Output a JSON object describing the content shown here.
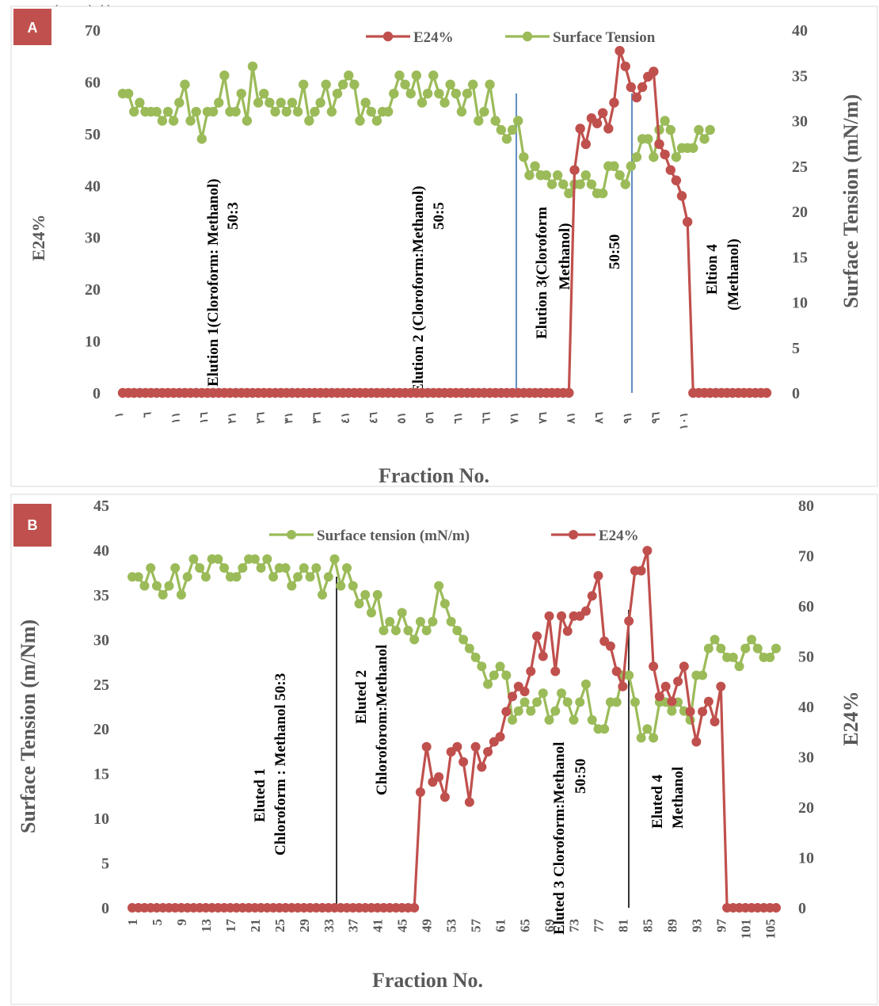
{
  "caption": "p (g y p) ( )",
  "chart_data": [
    {
      "panel": "A",
      "type": "line",
      "xlabel": "Fraction No.",
      "ylabel_left": "E24%",
      "ylabel_right": "Surface Tension (mN/m)",
      "ylim_left": [
        0,
        70
      ],
      "ylim_right": [
        0,
        40
      ],
      "yticks_left": [
        "0",
        "10",
        "20",
        "30",
        "40",
        "50",
        "60",
        "70"
      ],
      "yticks_right": [
        "0",
        "5",
        "10",
        "15",
        "20",
        "25",
        "30",
        "35",
        "40"
      ],
      "xticks": [
        "١",
        "٦",
        "١١",
        "١٦",
        "٢١",
        "٢٦",
        "٣١",
        "٣٦",
        "٤١",
        "٤٦",
        "٥١",
        "٥٦",
        "٦١",
        "٦٦",
        "٧١",
        "٧٦",
        "٨١",
        "٨٦",
        "٩١",
        "٩٦",
        "١٠١"
      ],
      "legend_placement": "top",
      "colors": {
        "e24": "#c0504d",
        "st": "#9bbb59",
        "divider": "#4f81bd"
      },
      "series": [
        {
          "name": "E24%",
          "axis": "left",
          "values": [
            0,
            0,
            0,
            0,
            0,
            0,
            0,
            0,
            0,
            0,
            0,
            0,
            0,
            0,
            0,
            0,
            0,
            0,
            0,
            0,
            0,
            0,
            0,
            0,
            0,
            0,
            0,
            0,
            0,
            0,
            0,
            0,
            0,
            0,
            0,
            0,
            0,
            0,
            0,
            0,
            0,
            0,
            0,
            0,
            0,
            0,
            0,
            0,
            0,
            0,
            0,
            0,
            0,
            0,
            0,
            0,
            0,
            0,
            0,
            0,
            0,
            0,
            0,
            0,
            0,
            0,
            0,
            0,
            0,
            0,
            0,
            0,
            0,
            0,
            0,
            0,
            0,
            0,
            0,
            0,
            43,
            51,
            48,
            53,
            52,
            54,
            51,
            56,
            66,
            63,
            59,
            57,
            59,
            61,
            62,
            48,
            46,
            43,
            41,
            38,
            33,
            0,
            0,
            0,
            0,
            0,
            0,
            0,
            0,
            0,
            0,
            0,
            0,
            0,
            0
          ]
        },
        {
          "name": "Surface Tension",
          "axis": "right",
          "values": [
            33,
            33,
            31,
            32,
            31,
            31,
            31,
            30,
            31,
            30,
            32,
            34,
            30,
            31,
            28,
            31,
            31,
            32,
            35,
            31,
            31,
            33,
            30,
            36,
            32,
            33,
            32,
            31,
            32,
            31,
            32,
            31,
            34,
            30,
            31,
            32,
            34,
            31,
            33,
            34,
            35,
            34,
            30,
            32,
            31,
            30,
            31,
            31,
            33,
            35,
            34,
            33,
            35,
            32,
            33,
            35,
            33,
            32,
            34,
            33,
            31,
            33,
            34,
            30,
            31,
            34,
            30,
            29,
            28,
            29,
            30,
            26,
            24,
            25,
            24,
            24,
            23,
            24,
            23,
            22,
            23,
            23,
            24,
            23,
            22,
            22,
            25,
            25,
            24,
            23,
            25,
            26,
            28,
            28,
            26,
            29,
            30,
            29,
            26,
            27,
            27,
            27,
            29,
            28,
            29
          ]
        }
      ],
      "annotations": [
        "Elution  1(Cloroform:  Methanol)",
        "50:3",
        "Elution  2 (Cloroform:Methanol)",
        "50:5",
        "Elution  3(Cloroform",
        "Methanol)",
        "50:50",
        "Eltion 4",
        "(Methanol)"
      ]
    },
    {
      "panel": "B",
      "type": "line",
      "xlabel": "Fraction No.",
      "ylabel_left": "Surface Tension (m/Nm)",
      "ylabel_right": "E24%",
      "ylim_left": [
        0,
        45
      ],
      "ylim_right": [
        0,
        80
      ],
      "yticks_left": [
        "0",
        "5",
        "10",
        "15",
        "20",
        "25",
        "30",
        "35",
        "40",
        "45"
      ],
      "yticks_right": [
        "0",
        "10",
        "20",
        "30",
        "40",
        "50",
        "60",
        "70",
        "80"
      ],
      "xticks": [
        "1",
        "5",
        "9",
        "13",
        "17",
        "21",
        "25",
        "29",
        "33",
        "37",
        "41",
        "45",
        "49",
        "53",
        "57",
        "61",
        "65",
        "69",
        "73",
        "77",
        "81",
        "85",
        "89",
        "93",
        "97",
        "101",
        "105"
      ],
      "legend_placement": "top",
      "colors": {
        "e24": "#c0504d",
        "st": "#9bbb59",
        "divider": "#000000"
      },
      "series": [
        {
          "name": "Surface tension (mN/m)",
          "axis": "left",
          "values": [
            37,
            37,
            36,
            38,
            36,
            35,
            36,
            38,
            35,
            37,
            39,
            38,
            37,
            39,
            39,
            38,
            37,
            37,
            38,
            39,
            39,
            38,
            39,
            37,
            38,
            38,
            36,
            37,
            38,
            37,
            38,
            35,
            37,
            39,
            36,
            38,
            36,
            34,
            35,
            33,
            35,
            31,
            32,
            31,
            33,
            31,
            30,
            32,
            31,
            32,
            36,
            34,
            32,
            31,
            30,
            29,
            28,
            27,
            25,
            26,
            27,
            26,
            21,
            22,
            23,
            22,
            23,
            24,
            21,
            22,
            24,
            23,
            21,
            23,
            25,
            21,
            20,
            20,
            23,
            23,
            26,
            26,
            23,
            19,
            20,
            19,
            23,
            23,
            22,
            23,
            22,
            21,
            26,
            26,
            29,
            30,
            29,
            28,
            28,
            27,
            29,
            30,
            29,
            28,
            28,
            29
          ]
        },
        {
          "name": "E24%",
          "axis": "right",
          "values": [
            0,
            0,
            0,
            0,
            0,
            0,
            0,
            0,
            0,
            0,
            0,
            0,
            0,
            0,
            0,
            0,
            0,
            0,
            0,
            0,
            0,
            0,
            0,
            0,
            0,
            0,
            0,
            0,
            0,
            0,
            0,
            0,
            0,
            0,
            0,
            0,
            0,
            0,
            0,
            0,
            0,
            0,
            0,
            0,
            0,
            0,
            0,
            23,
            32,
            25,
            26,
            22,
            31,
            32,
            29,
            21,
            32,
            28,
            31,
            33,
            34,
            39,
            42,
            44,
            43,
            47,
            54,
            50,
            58,
            47,
            58,
            55,
            58,
            58,
            59,
            62,
            66,
            53,
            52,
            47,
            44,
            57,
            67,
            67,
            71,
            48,
            42,
            44,
            41,
            45,
            48,
            39,
            33,
            39,
            41,
            37,
            44,
            0,
            0,
            0,
            0,
            0,
            0,
            0,
            0,
            0
          ]
        }
      ],
      "annotations": [
        "Eluted 1",
        "Chloroform : Methanol 50:3",
        "Eluted 2",
        "Chloroforom:Methanol",
        "Eluted 3 Cloroform:Methanol",
        "50:50",
        "Eluted 4",
        "Methanol"
      ]
    }
  ]
}
